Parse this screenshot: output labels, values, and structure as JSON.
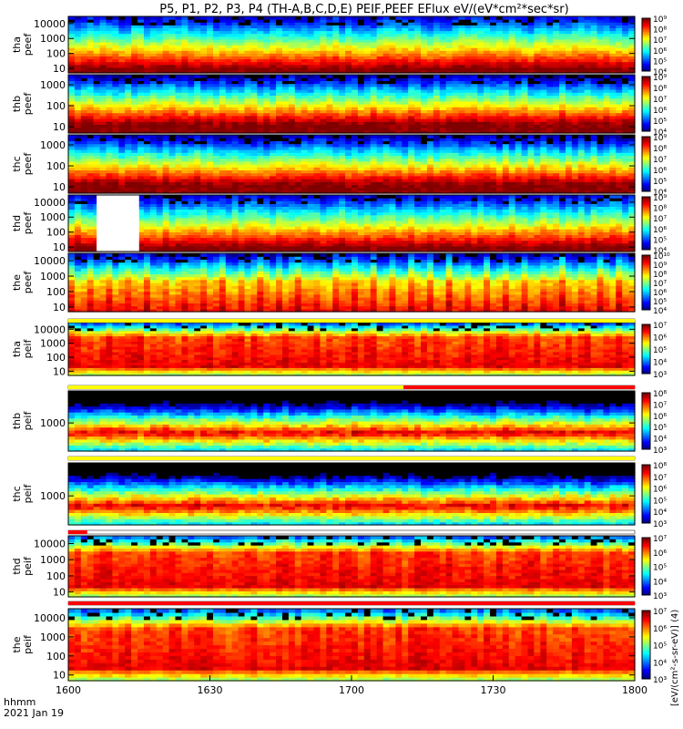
{
  "title": "P5, P1, P2, P3, P4 (TH-A,B,C,D,E) PEIF,PEEF EFlux eV/(eV*cm²*sec*sr)",
  "time_axis": {
    "ticks": [
      "1600",
      "1630",
      "1700",
      "1730",
      "1800"
    ],
    "label_line1": "hhmm",
    "label_line2": "2021 Jan 19"
  },
  "colorbar_caption": "[eV/(cm²-s-sr-eV)] (4)",
  "chart_data": {
    "type": "heatmap",
    "x_unit": "hhmm",
    "x_range": [
      "1600",
      "1800"
    ],
    "y_scale": "log",
    "y_unit": "eV",
    "z_scale": "log",
    "z_unit": "eV/(eV*cm²*sec*sr)",
    "panels": [
      {
        "name": "tha_peef",
        "label1": "tha",
        "label2": "peef",
        "ylim": [
          5,
          30000
        ],
        "yticks": [
          "10",
          "100",
          "1000",
          "10000"
        ],
        "cbar_ticks": [
          "10⁴",
          "10⁵",
          "10⁶",
          "10⁷",
          "10⁸",
          "10⁹"
        ],
        "cbar_exp": [
          4,
          9
        ],
        "profile": "electron_hot",
        "gaps": [],
        "status": []
      },
      {
        "name": "thb_peef",
        "label1": "thb",
        "label2": "peef",
        "ylim": [
          5,
          3000
        ],
        "yticks": [
          "10",
          "100",
          "1000"
        ],
        "cbar_ticks": [
          "10⁴",
          "10⁵",
          "10⁶",
          "10⁷",
          "10⁸",
          "10⁹"
        ],
        "cbar_exp": [
          4,
          9
        ],
        "profile": "electron_cool",
        "gaps": [],
        "status": []
      },
      {
        "name": "thc_peef",
        "label1": "thc",
        "label2": "peef",
        "ylim": [
          5,
          3000
        ],
        "yticks": [
          "10",
          "100",
          "1000"
        ],
        "cbar_ticks": [
          "10⁴",
          "10⁵",
          "10⁶",
          "10⁷",
          "10⁸",
          "10⁹"
        ],
        "cbar_exp": [
          4,
          9
        ],
        "profile": "electron_cool",
        "gaps": [],
        "status": []
      },
      {
        "name": "thd_peef",
        "label1": "thd",
        "label2": "peef",
        "ylim": [
          5,
          30000
        ],
        "yticks": [
          "10",
          "100",
          "1000",
          "10000"
        ],
        "cbar_ticks": [
          "10⁴",
          "10⁵",
          "10⁶",
          "10⁷",
          "10⁸",
          "10⁹"
        ],
        "cbar_exp": [
          4,
          9
        ],
        "profile": "electron_hot",
        "gaps": [
          [
            "1606",
            "1615"
          ]
        ],
        "status": []
      },
      {
        "name": "the_peef",
        "label1": "the",
        "label2": "peef",
        "ylim": [
          5,
          30000
        ],
        "yticks": [
          "10",
          "100",
          "1000",
          "10000"
        ],
        "cbar_ticks": [
          "10⁴",
          "10⁵",
          "10⁶",
          "10⁷",
          "10⁸",
          "10⁹",
          "10¹⁰"
        ],
        "cbar_exp": [
          4,
          10
        ],
        "profile": "electron_burst",
        "gaps": [],
        "status": []
      },
      {
        "name": "tha_peif",
        "label1": "tha",
        "label2": "peif",
        "ylim": [
          5,
          30000
        ],
        "yticks": [
          "10",
          "100",
          "1000",
          "10000"
        ],
        "cbar_ticks": [
          "10³",
          "10⁴",
          "10⁵",
          "10⁶",
          "10⁷"
        ],
        "cbar_exp": [
          3,
          7
        ],
        "profile": "ion_low",
        "gaps": [],
        "status": [
          {
            "from": "1600",
            "to": "1800",
            "color": "#ffff00"
          }
        ]
      },
      {
        "name": "thb_peif",
        "label1": "thb",
        "label2": "peif",
        "ylim": [
          50,
          30000
        ],
        "yticks": [
          "1000"
        ],
        "cbar_ticks": [
          "10³",
          "10⁴",
          "10⁵",
          "10⁶",
          "10⁷",
          "10⁸"
        ],
        "cbar_exp": [
          3,
          8
        ],
        "profile": "ion_band",
        "gaps": [],
        "status": [
          {
            "from": "1600",
            "to": "1800",
            "color": "#ffff00"
          }
        ]
      },
      {
        "name": "thc_peif",
        "label1": "thc",
        "label2": "peif",
        "ylim": [
          50,
          30000
        ],
        "yticks": [
          "1000"
        ],
        "cbar_ticks": [
          "10³",
          "10⁴",
          "10⁵",
          "10⁶",
          "10⁷",
          "10⁸"
        ],
        "cbar_exp": [
          3,
          8
        ],
        "profile": "ion_band",
        "gaps": [],
        "status": [
          {
            "from": "1600",
            "to": "1800",
            "color": "#ffff00"
          }
        ]
      },
      {
        "name": "thd_peif",
        "label1": "thd",
        "label2": "peif",
        "ylim": [
          5,
          30000
        ],
        "yticks": [
          "10",
          "100",
          "1000",
          "10000"
        ],
        "cbar_ticks": [
          "10³",
          "10⁴",
          "10⁵",
          "10⁶",
          "10⁷"
        ],
        "cbar_exp": [
          3,
          7
        ],
        "profile": "ion_low",
        "gaps": [],
        "status": [
          {
            "from": "1600",
            "to": "1800",
            "color": "#ff0000"
          }
        ]
      },
      {
        "name": "the_peif",
        "label1": "the",
        "label2": "peif",
        "ylim": [
          5,
          30000
        ],
        "yticks": [
          "10",
          "100",
          "1000",
          "10000"
        ],
        "cbar_ticks": [
          "10³",
          "10⁴",
          "10⁵",
          "10⁶",
          "10⁷"
        ],
        "cbar_exp": [
          3,
          7
        ],
        "profile": "ion_low",
        "gaps": [],
        "status": []
      }
    ],
    "status_bars": [
      {
        "after_panel": "the_peef",
        "segments": [
          {
            "from": "1600",
            "to": "1800",
            "color": "#ffff00"
          }
        ]
      },
      {
        "after_panel": "tha_peif",
        "segments": [
          {
            "from": "1600",
            "to": "1711",
            "color": "#ffff00"
          },
          {
            "from": "1711",
            "to": "1800",
            "color": "#ff0000"
          }
        ]
      },
      {
        "after_panel": "thb_peif",
        "segments": [
          {
            "from": "1600",
            "to": "1800",
            "color": "#ffff00"
          }
        ]
      },
      {
        "after_panel": "thc_peif",
        "segments": [
          {
            "from": "1600",
            "to": "1604",
            "color": "#ff0000"
          }
        ]
      },
      {
        "after_panel": "thd_peif",
        "segments": [
          {
            "from": "1600",
            "to": "1800",
            "color": "#ff0000"
          }
        ]
      }
    ]
  }
}
